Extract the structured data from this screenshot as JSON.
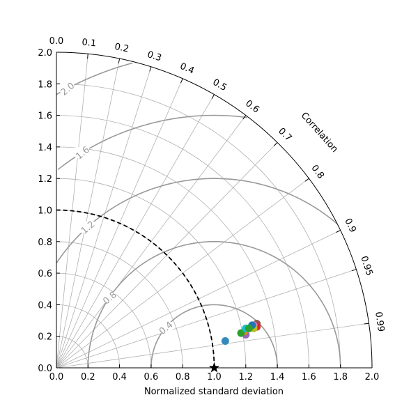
{
  "chart_data": {
    "type": "scatter",
    "subtype": "taylor-diagram",
    "xlabel": "Normalized standard deviation",
    "angular_label": "Correlation",
    "std_range": [
      0,
      2.0
    ],
    "std_ticks": [
      0.0,
      0.2,
      0.4,
      0.6,
      0.8,
      1.0,
      1.2,
      1.4,
      1.6,
      1.8,
      2.0
    ],
    "correlation_ticks": [
      0.0,
      0.1,
      0.2,
      0.3,
      0.4,
      0.5,
      0.6,
      0.7,
      0.8,
      0.9,
      0.95,
      0.99
    ],
    "correlation_tick_labels": [
      "0.0",
      "0.1",
      "0.2",
      "0.3",
      "0.4",
      "0.5",
      "0.6",
      "0.7",
      "0.8",
      "0.9",
      "0.95",
      "0.99"
    ],
    "rms_contours": [
      0.4,
      0.8,
      1.2,
      1.6,
      2.0
    ],
    "rms_contour_labels": [
      "0.4",
      "0.8",
      "1.2",
      "1.6",
      "2.0"
    ],
    "grid": true,
    "reference": {
      "std": 1.0,
      "correlation": 1.0,
      "marker": "star",
      "color": "#000000"
    },
    "reference_arc_std": 1.0,
    "points": [
      {
        "x": 1.07,
        "y": 0.17,
        "color": "#348ABD"
      },
      {
        "x": 1.27,
        "y": 0.28,
        "color": "#8C564B"
      },
      {
        "x": 1.27,
        "y": 0.26,
        "color": "#D62728"
      },
      {
        "x": 1.25,
        "y": 0.27,
        "color": "#E377C2"
      },
      {
        "x": 1.24,
        "y": 0.26,
        "color": "#7F7F7F"
      },
      {
        "x": 1.25,
        "y": 0.25,
        "color": "#BCBD22"
      },
      {
        "x": 1.24,
        "y": 0.27,
        "color": "#1F77B4"
      },
      {
        "x": 1.2,
        "y": 0.21,
        "color": "#9467BD"
      },
      {
        "x": 1.19,
        "y": 0.23,
        "color": "#FF7F0E"
      },
      {
        "x": 1.17,
        "y": 0.22,
        "color": "#2CA02C"
      },
      {
        "x": 1.2,
        "y": 0.25,
        "color": "#17BECF"
      },
      {
        "x": 1.22,
        "y": 0.25,
        "color": "#2CA02C"
      }
    ]
  }
}
